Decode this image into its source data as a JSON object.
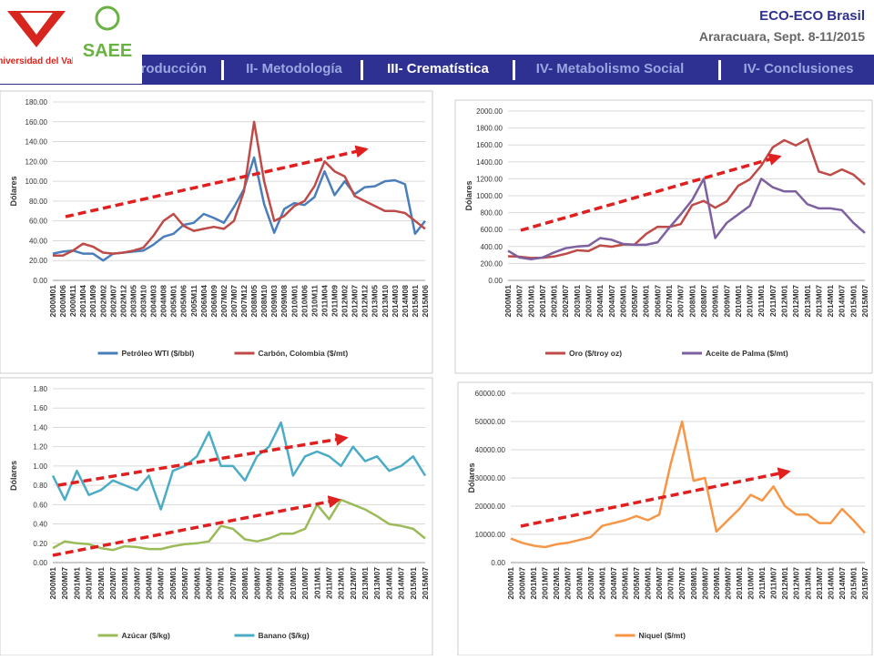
{
  "header": {
    "title": "ECO-ECO Brasil",
    "subtitle": "Araracuara, Sept. 8-11/2015",
    "logo1": "Universidad del Valle",
    "logo2": "SAEE"
  },
  "nav": [
    "I- Introducción",
    "II- Metodología",
    "III- Crematística",
    "IV- Metabolismo Social",
    "IV- Conclusiones"
  ],
  "chart_data": [
    {
      "type": "line",
      "y_label": "Dólares",
      "categories": [
        "2000M01",
        "2000M06",
        "2000M11",
        "2001M04",
        "2001M09",
        "2002M02",
        "2002M07",
        "2002M12",
        "2003M05",
        "2003M10",
        "2004M03",
        "2004M08",
        "2005M01",
        "2005M06",
        "2005M11",
        "2006M04",
        "2006M09",
        "2007M02",
        "2007M07",
        "2007M12",
        "2008M05",
        "2008M10",
        "2009M03",
        "2009M08",
        "2010M01",
        "2010M06",
        "2010M11",
        "2011M04",
        "2011M09",
        "2012M02",
        "2012M07",
        "2012M12",
        "2013M05",
        "2013M10",
        "2014M03",
        "2014M08",
        "2015M01",
        "2015M06"
      ],
      "series": [
        {
          "name": "Petróleo WTI ($/bbl)",
          "color": "#4a7ebb",
          "values": [
            27,
            29,
            30,
            27,
            27,
            20,
            27,
            28,
            29,
            30,
            36,
            44,
            47,
            56,
            58,
            67,
            63,
            58,
            74,
            92,
            124,
            77,
            48,
            72,
            78,
            76,
            84,
            110,
            86,
            100,
            87,
            94,
            95,
            100,
            101,
            97,
            47,
            60
          ]
        },
        {
          "name": "Carbón, Colombia ($/mt)",
          "color": "#be4b48",
          "values": [
            25,
            25,
            30,
            37,
            34,
            28,
            27,
            28,
            30,
            33,
            45,
            60,
            67,
            55,
            50,
            52,
            54,
            52,
            60,
            90,
            160,
            100,
            60,
            65,
            75,
            80,
            95,
            120,
            110,
            105,
            85,
            80,
            75,
            70,
            70,
            68,
            60,
            52
          ]
        }
      ],
      "ylim": [
        0,
        180
      ],
      "yticks": [
        {
          "value": 0,
          "label": "0.00"
        },
        {
          "value": 20,
          "label": "20.00"
        },
        {
          "value": 40,
          "label": "40.00"
        },
        {
          "value": 60,
          "label": "60.00"
        },
        {
          "value": 80,
          "label": "80.00"
        },
        {
          "value": 100,
          "label": "100.00"
        },
        {
          "value": 120,
          "label": "120.00"
        },
        {
          "value": 140,
          "label": "140.00"
        },
        {
          "value": 160,
          "label": "160.00"
        },
        {
          "value": 180,
          "label": "180.00"
        }
      ],
      "grid": true
    },
    {
      "type": "line",
      "y_label": "Dólares",
      "categories": [
        "2000M01",
        "2000M07",
        "2001M01",
        "2001M07",
        "2002M01",
        "2002M07",
        "2003M01",
        "2003M07",
        "2004M01",
        "2004M07",
        "2005M01",
        "2005M07",
        "2006M01",
        "2006M07",
        "2007M01",
        "2007M07",
        "2008M01",
        "2008M07",
        "2009M01",
        "2009M07",
        "2010M01",
        "2010M07",
        "2011M01",
        "2011M07",
        "2012M01",
        "2012M07",
        "2013M01",
        "2013M07",
        "2014M01",
        "2014M07",
        "2015M01",
        "2015M07"
      ],
      "series": [
        {
          "name": "Oro ($/troy oz)",
          "color": "#be4b48",
          "values": [
            285,
            280,
            265,
            268,
            282,
            313,
            356,
            346,
            413,
            398,
            424,
            424,
            549,
            633,
            631,
            665,
            889,
            939,
            858,
            934,
            1118,
            1193,
            1356,
            1572,
            1656,
            1594,
            1670,
            1286,
            1244,
            1311,
            1250,
            1130
          ]
        },
        {
          "name": "Aceite de Palma ($/mt)",
          "color": "#7d60a0",
          "values": [
            350,
            270,
            250,
            270,
            330,
            380,
            400,
            410,
            500,
            480,
            430,
            420,
            420,
            450,
            620,
            780,
            950,
            1200,
            500,
            680,
            780,
            880,
            1200,
            1100,
            1050,
            1050,
            900,
            850,
            850,
            830,
            680,
            560
          ]
        }
      ],
      "ylim": [
        0,
        2000
      ],
      "yticks": [
        {
          "value": 0,
          "label": "0.00"
        },
        {
          "value": 200,
          "label": "200.00"
        },
        {
          "value": 400,
          "label": "400.00"
        },
        {
          "value": 600,
          "label": "600.00"
        },
        {
          "value": 800,
          "label": "800.00"
        },
        {
          "value": 1000,
          "label": "1000.00"
        },
        {
          "value": 1200,
          "label": "1200.00"
        },
        {
          "value": 1400,
          "label": "1400.00"
        },
        {
          "value": 1600,
          "label": "1600.00"
        },
        {
          "value": 1800,
          "label": "1800.00"
        },
        {
          "value": 2000,
          "label": "2000.00"
        }
      ],
      "grid": true
    },
    {
      "type": "line",
      "y_label": "Dólares",
      "categories": [
        "2000M01",
        "2000M07",
        "2001M01",
        "2001M07",
        "2002M01",
        "2002M07",
        "2003M01",
        "2003M07",
        "2004M01",
        "2004M07",
        "2005M01",
        "2005M07",
        "2006M01",
        "2006M07",
        "2007M01",
        "2007M07",
        "2008M01",
        "2008M07",
        "2009M01",
        "2009M07",
        "2010M01",
        "2010M07",
        "2011M01",
        "2011M07",
        "2012M01",
        "2012M07",
        "2013M01",
        "2013M07",
        "2014M01",
        "2014M07",
        "2015M01",
        "2015M07"
      ],
      "series": [
        {
          "name": "Azúcar ($/kg)",
          "color": "#9bbb59",
          "values": [
            0.15,
            0.22,
            0.2,
            0.19,
            0.15,
            0.13,
            0.17,
            0.16,
            0.14,
            0.14,
            0.17,
            0.19,
            0.2,
            0.22,
            0.38,
            0.35,
            0.24,
            0.22,
            0.25,
            0.3,
            0.3,
            0.35,
            0.6,
            0.45,
            0.65,
            0.6,
            0.55,
            0.48,
            0.4,
            0.38,
            0.35,
            0.25
          ]
        },
        {
          "name": "Banano ($/kg)",
          "color": "#4bacc6",
          "values": [
            0.9,
            0.65,
            0.95,
            0.7,
            0.75,
            0.85,
            0.8,
            0.75,
            0.9,
            0.55,
            0.95,
            1.0,
            1.1,
            1.35,
            1.0,
            1.0,
            0.85,
            1.1,
            1.2,
            1.45,
            0.9,
            1.1,
            1.15,
            1.1,
            1.0,
            1.2,
            1.05,
            1.1,
            0.95,
            1.0,
            1.1,
            0.9
          ]
        }
      ],
      "ylim": [
        0,
        1.8
      ],
      "yticks": [
        {
          "value": 0,
          "label": "0.00"
        },
        {
          "value": 0.2,
          "label": "0.20"
        },
        {
          "value": 0.4,
          "label": "0.40"
        },
        {
          "value": 0.6,
          "label": "0.60"
        },
        {
          "value": 0.8,
          "label": "0.80"
        },
        {
          "value": 1.0,
          "label": "1.00"
        },
        {
          "value": 1.2,
          "label": "1.20"
        },
        {
          "value": 1.4,
          "label": "1.40"
        },
        {
          "value": 1.6,
          "label": "1.60"
        },
        {
          "value": 1.8,
          "label": "1.80"
        }
      ],
      "grid": true
    },
    {
      "type": "line",
      "y_label": "Dólares",
      "categories": [
        "2000M01",
        "2000M07",
        "2001M01",
        "2001M07",
        "2002M01",
        "2002M07",
        "2003M01",
        "2003M07",
        "2004M01",
        "2004M07",
        "2005M01",
        "2005M07",
        "2006M01",
        "2006M07",
        "2007M01",
        "2007M07",
        "2008M01",
        "2008M07",
        "2009M01",
        "2009M07",
        "2010M01",
        "2010M07",
        "2011M01",
        "2011M07",
        "2012M01",
        "2012M07",
        "2013M01",
        "2013M07",
        "2014M01",
        "2014M07",
        "2015M01",
        "2015M07"
      ],
      "series": [
        {
          "name": "Niquel ($/mt)",
          "color": "#f79646",
          "values": [
            8500,
            7000,
            6000,
            5500,
            6500,
            7000,
            8000,
            9000,
            13000,
            14000,
            15000,
            16500,
            15000,
            17000,
            35000,
            50000,
            29000,
            30000,
            11000,
            15000,
            19000,
            24000,
            22000,
            27000,
            20000,
            17000,
            17000,
            14000,
            14000,
            19000,
            15000,
            10500
          ]
        }
      ],
      "ylim": [
        0,
        60000
      ],
      "yticks": [
        {
          "value": 0,
          "label": "0.00"
        },
        {
          "value": 10000,
          "label": "10000.00"
        },
        {
          "value": 20000,
          "label": "20000.00"
        },
        {
          "value": 30000,
          "label": "30000.00"
        },
        {
          "value": 40000,
          "label": "40000.00"
        },
        {
          "value": 50000,
          "label": "50000.00"
        },
        {
          "value": 60000,
          "label": "60000.00"
        }
      ],
      "grid": true
    }
  ]
}
